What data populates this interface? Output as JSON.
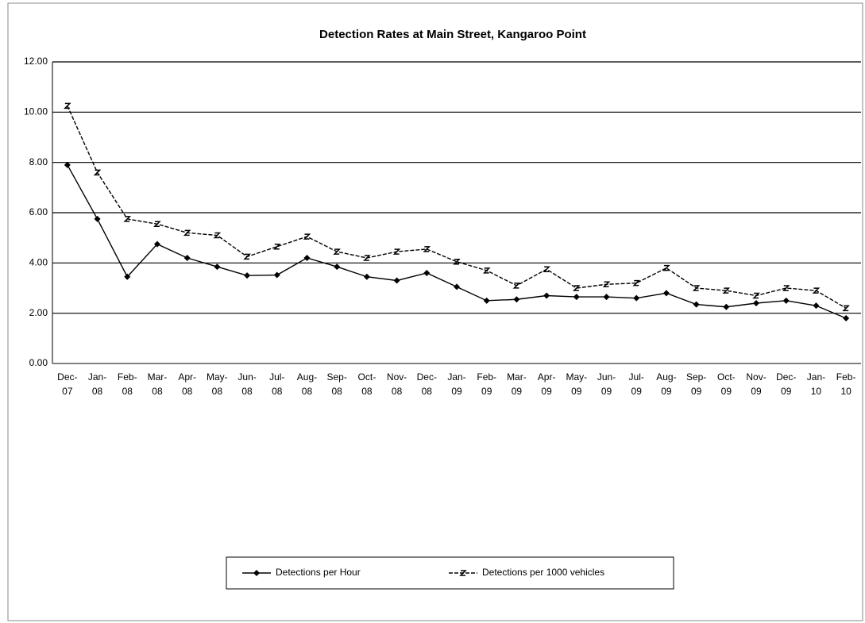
{
  "chart_data": {
    "type": "line",
    "title": "Detection Rates at Main Street, Kangaroo Point",
    "categories": [
      "Dec-07",
      "Jan-08",
      "Feb-08",
      "Mar-08",
      "Apr-08",
      "May-08",
      "Jun-08",
      "Jul-08",
      "Aug-08",
      "Sep-08",
      "Oct-08",
      "Nov-08",
      "Dec-08",
      "Jan-09",
      "Feb-09",
      "Mar-09",
      "Apr-09",
      "May-09",
      "Jun-09",
      "Jul-09",
      "Aug-09",
      "Sep-09",
      "Oct-09",
      "Nov-09",
      "Dec-09",
      "Jan-10",
      "Feb-10"
    ],
    "series": [
      {
        "name": "Detections per Hour",
        "color": "#000000",
        "marker": "diamond",
        "values": [
          7.9,
          5.75,
          3.45,
          4.75,
          4.2,
          3.85,
          3.5,
          3.52,
          4.2,
          3.85,
          3.45,
          3.3,
          3.6,
          3.05,
          2.5,
          2.55,
          2.7,
          2.65,
          2.65,
          2.6,
          2.8,
          2.35,
          2.25,
          2.4,
          2.5,
          2.3,
          1.8
        ]
      },
      {
        "name": "Detections per 1000 vehicles",
        "color": "#000000",
        "marker": "x",
        "values": [
          10.25,
          7.6,
          5.75,
          5.55,
          5.2,
          5.1,
          4.25,
          4.65,
          5.05,
          4.45,
          4.2,
          4.45,
          4.55,
          4.05,
          3.7,
          3.1,
          3.75,
          3.0,
          3.15,
          3.2,
          3.8,
          3.0,
          2.9,
          2.7,
          3.0,
          2.9,
          2.2
        ]
      }
    ],
    "ylim": [
      0,
      12
    ],
    "yticks": [
      {
        "value": 0,
        "label": "0.00"
      },
      {
        "value": 2,
        "label": "2.00"
      },
      {
        "value": 4,
        "label": "4.00"
      },
      {
        "value": 6,
        "label": "6.00"
      },
      {
        "value": 8,
        "label": "8.00"
      },
      {
        "value": 10,
        "label": "10.00"
      },
      {
        "value": 12,
        "label": "12.00"
      }
    ],
    "grid": true,
    "legend": "bottom"
  }
}
